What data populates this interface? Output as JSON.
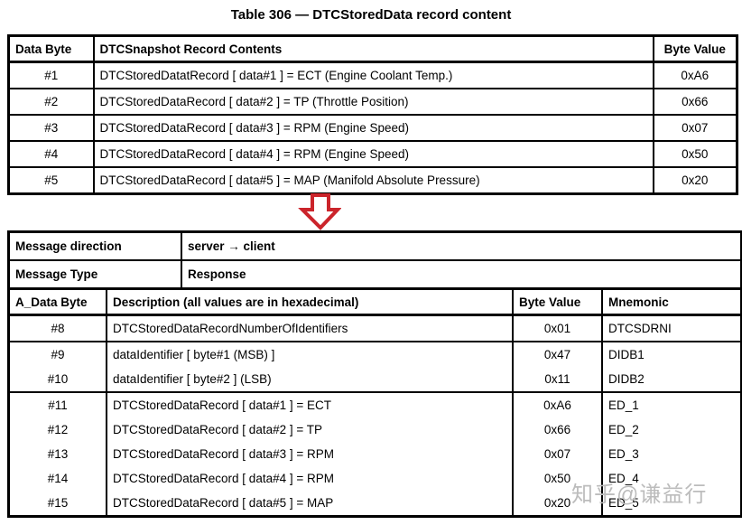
{
  "title": "Table 306 — DTCStoredData record content",
  "colors": {
    "arrow_red": "#cb242b",
    "border_black": "#000000",
    "watermark_gray": "#bcbcbc"
  },
  "snapshot_table": {
    "headers": [
      "Data Byte",
      "DTCSnapshot Record Contents",
      "Byte Value"
    ],
    "rows": [
      {
        "byte": "#1",
        "content": "DTCStoredDatatRecord [ data#1 ] = ECT (Engine Coolant Temp.)",
        "value": "0xA6"
      },
      {
        "byte": "#2",
        "content": "DTCStoredDataRecord [ data#2 ] = TP (Throttle Position)",
        "value": "0x66"
      },
      {
        "byte": "#3",
        "content": "DTCStoredDataRecord [ data#3 ] = RPM (Engine Speed)",
        "value": "0x07"
      },
      {
        "byte": "#4",
        "content": "DTCStoredDataRecord [ data#4 ] = RPM (Engine Speed)",
        "value": "0x50"
      },
      {
        "byte": "#5",
        "content": "DTCStoredDataRecord [ data#5 ] = MAP (Manifold Absolute Pressure)",
        "value": "0x20"
      }
    ]
  },
  "message_table": {
    "meta_rows": [
      {
        "label": "Message direction",
        "value": "server → client"
      },
      {
        "label": "Message Type",
        "value": "Response"
      }
    ],
    "headers": [
      "A_Data Byte",
      "Description (all values are in hexadecimal)",
      "Byte Value",
      "Mnemonic"
    ],
    "groups": [
      {
        "rows": [
          {
            "byte": "#8",
            "description": "DTCStoredDataRecordNumberOfIdentifiers",
            "value": "0x01",
            "mnemonic": "DTCSDRNI"
          }
        ]
      },
      {
        "rows": [
          {
            "byte": "#9",
            "description": "dataIdentifier [ byte#1 (MSB) ]",
            "value": "0x47",
            "mnemonic": "DIDB1"
          },
          {
            "byte": "#10",
            "description": "dataIdentifier [ byte#2 ] (LSB)",
            "value": "0x11",
            "mnemonic": "DIDB2"
          }
        ]
      },
      {
        "rows": [
          {
            "byte": "#11",
            "description": "DTCStoredDataRecord [ data#1 ] = ECT",
            "value": "0xA6",
            "mnemonic": "ED_1"
          },
          {
            "byte": "#12",
            "description": "DTCStoredDataRecord [ data#2 ] = TP",
            "value": "0x66",
            "mnemonic": "ED_2"
          },
          {
            "byte": "#13",
            "description": "DTCStoredDataRecord [ data#3 ] = RPM",
            "value": "0x07",
            "mnemonic": "ED_3"
          },
          {
            "byte": "#14",
            "description": "DTCStoredDataRecord [ data#4 ] = RPM",
            "value": "0x50",
            "mnemonic": "ED_4"
          },
          {
            "byte": "#15",
            "description": "DTCStoredDataRecord [ data#5 ] = MAP",
            "value": "0x20",
            "mnemonic": "ED_5"
          }
        ]
      }
    ]
  },
  "watermark": "知乎@谦益行"
}
